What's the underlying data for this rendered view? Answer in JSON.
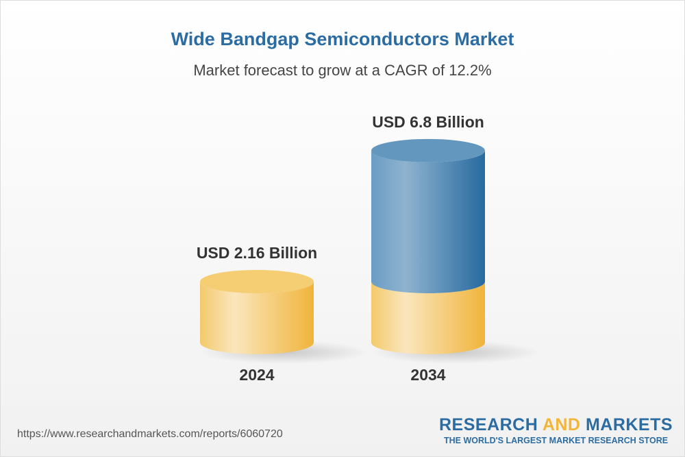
{
  "title": "Wide Bandgap Semiconductors Market",
  "subtitle": "Market forecast to grow at a CAGR of 12.2%",
  "chart_data": {
    "type": "bar",
    "style": "3d-cylinder",
    "categories": [
      "2024",
      "2034"
    ],
    "values": [
      2.16,
      6.8
    ],
    "data_labels": [
      "USD 2.16 Billion",
      "USD 6.8 Billion"
    ],
    "unit": "USD Billion",
    "colors": {
      "base": "#f2b53a",
      "growth": "#2b6ca3"
    }
  },
  "footer": {
    "url": "https://www.researchandmarkets.com/reports/6060720",
    "logo_part1": "RESEARCH ",
    "logo_part2": "AND",
    "logo_part3": " MARKETS",
    "tagline": "THE WORLD'S LARGEST MARKET RESEARCH STORE"
  }
}
